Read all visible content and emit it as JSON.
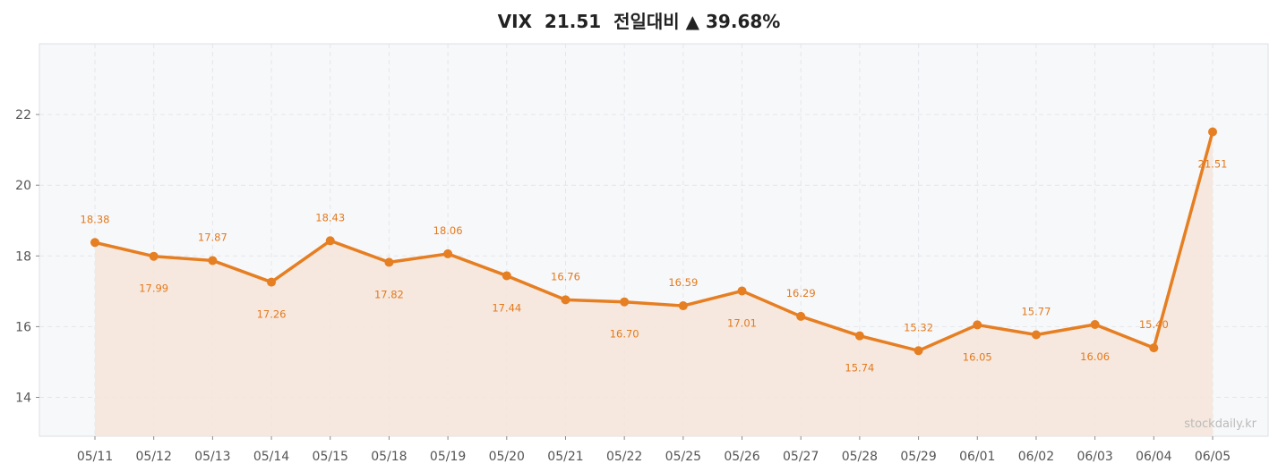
{
  "title": "VIX  21.51  전일대비 ▲ 39.68%",
  "watermark": "stockdaily.kr",
  "colors": {
    "line": "#e67e22",
    "fill": "#f5e6da",
    "plot_bg": "#f7f8fa",
    "grid": "#e4e6ea",
    "label": "#e37a1e"
  },
  "chart_data": {
    "type": "line",
    "title": "VIX  21.51  전일대비 ▲ 39.68%",
    "xlabel": "",
    "ylabel": "",
    "categories": [
      "05/11",
      "05/12",
      "05/13",
      "05/14",
      "05/15",
      "05/18",
      "05/19",
      "05/20",
      "05/21",
      "05/22",
      "05/25",
      "05/26",
      "05/27",
      "05/28",
      "05/29",
      "06/01",
      "06/02",
      "06/03",
      "06/04",
      "06/05"
    ],
    "series": [
      {
        "values": [
          18.38,
          17.99,
          17.87,
          17.26,
          18.43,
          17.82,
          18.06,
          17.44,
          16.76,
          16.7,
          16.59,
          17.01,
          16.29,
          15.74,
          15.32,
          16.05,
          15.77,
          16.06,
          15.4,
          21.51
        ],
        "data_labels": [
          "18.38",
          "17.99",
          "17.87",
          "17.26",
          "18.43",
          "17.82",
          "18.06",
          "17.44",
          "16.76",
          "16.70",
          "16.59",
          "17.01",
          "16.29",
          "15.74",
          "15.32",
          "16.05",
          "15.77",
          "16.06",
          "15.40",
          "21.51"
        ]
      }
    ],
    "ylim": [
      12.9,
      24.0
    ],
    "yticks": [
      14,
      16,
      18,
      20,
      22
    ],
    "grid": true,
    "area_fill": true,
    "legend": "none"
  }
}
